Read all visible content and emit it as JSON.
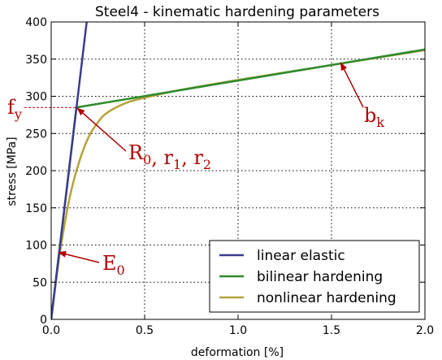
{
  "chart_data": {
    "type": "line",
    "title": "Steel4 - kinematic hardening parameters",
    "xlabel": "deformation [%]",
    "ylabel": "stress [MPa]",
    "xlim": [
      0,
      2.0
    ],
    "ylim": [
      0,
      400
    ],
    "xticks": [
      "0.0",
      "0.5",
      "1.0",
      "1.5",
      "2.0"
    ],
    "yticks": [
      "0",
      "50",
      "100",
      "150",
      "200",
      "250",
      "300",
      "350",
      "400"
    ],
    "xtick_values": [
      0,
      0.5,
      1.0,
      1.5,
      2.0
    ],
    "ytick_values": [
      0,
      50,
      100,
      150,
      200,
      250,
      300,
      350,
      400
    ],
    "grid": "dotted",
    "legend_position": "bottom-right",
    "series": [
      {
        "name": "linear elastic",
        "color": "#3b3b8e",
        "x": [
          0,
          0.19
        ],
        "y": [
          0,
          400
        ]
      },
      {
        "name": "bilinear hardening",
        "color": "#2f8a2f",
        "x": [
          0,
          0.135,
          2.0
        ],
        "y": [
          0,
          285,
          363
        ]
      },
      {
        "name": "nonlinear hardening",
        "color": "#b5a33a",
        "x": [
          0,
          0.02,
          0.05,
          0.1,
          0.15,
          0.2,
          0.25,
          0.3,
          0.4,
          0.5,
          0.7,
          1.0,
          1.5,
          2.0
        ],
        "y": [
          0,
          40,
          95,
          165,
          212,
          245,
          265,
          278,
          291,
          298,
          309,
          322,
          342,
          362
        ]
      }
    ],
    "annotations": [
      {
        "base": "f",
        "sub": "y",
        "extra": "",
        "points_to": [
          0.0,
          285
        ]
      },
      {
        "base": "R",
        "sub": "0",
        "extra": ", r1, r2",
        "points_to": [
          0.14,
          284
        ]
      },
      {
        "base": "b",
        "sub": "k",
        "extra": "",
        "points_to": [
          1.55,
          345
        ]
      },
      {
        "base": "E",
        "sub": "0",
        "extra": "",
        "points_to": [
          0.04,
          90
        ]
      }
    ],
    "annotation_color": "#b00000",
    "fy_reference": {
      "x": 0.135,
      "y": 285
    }
  }
}
